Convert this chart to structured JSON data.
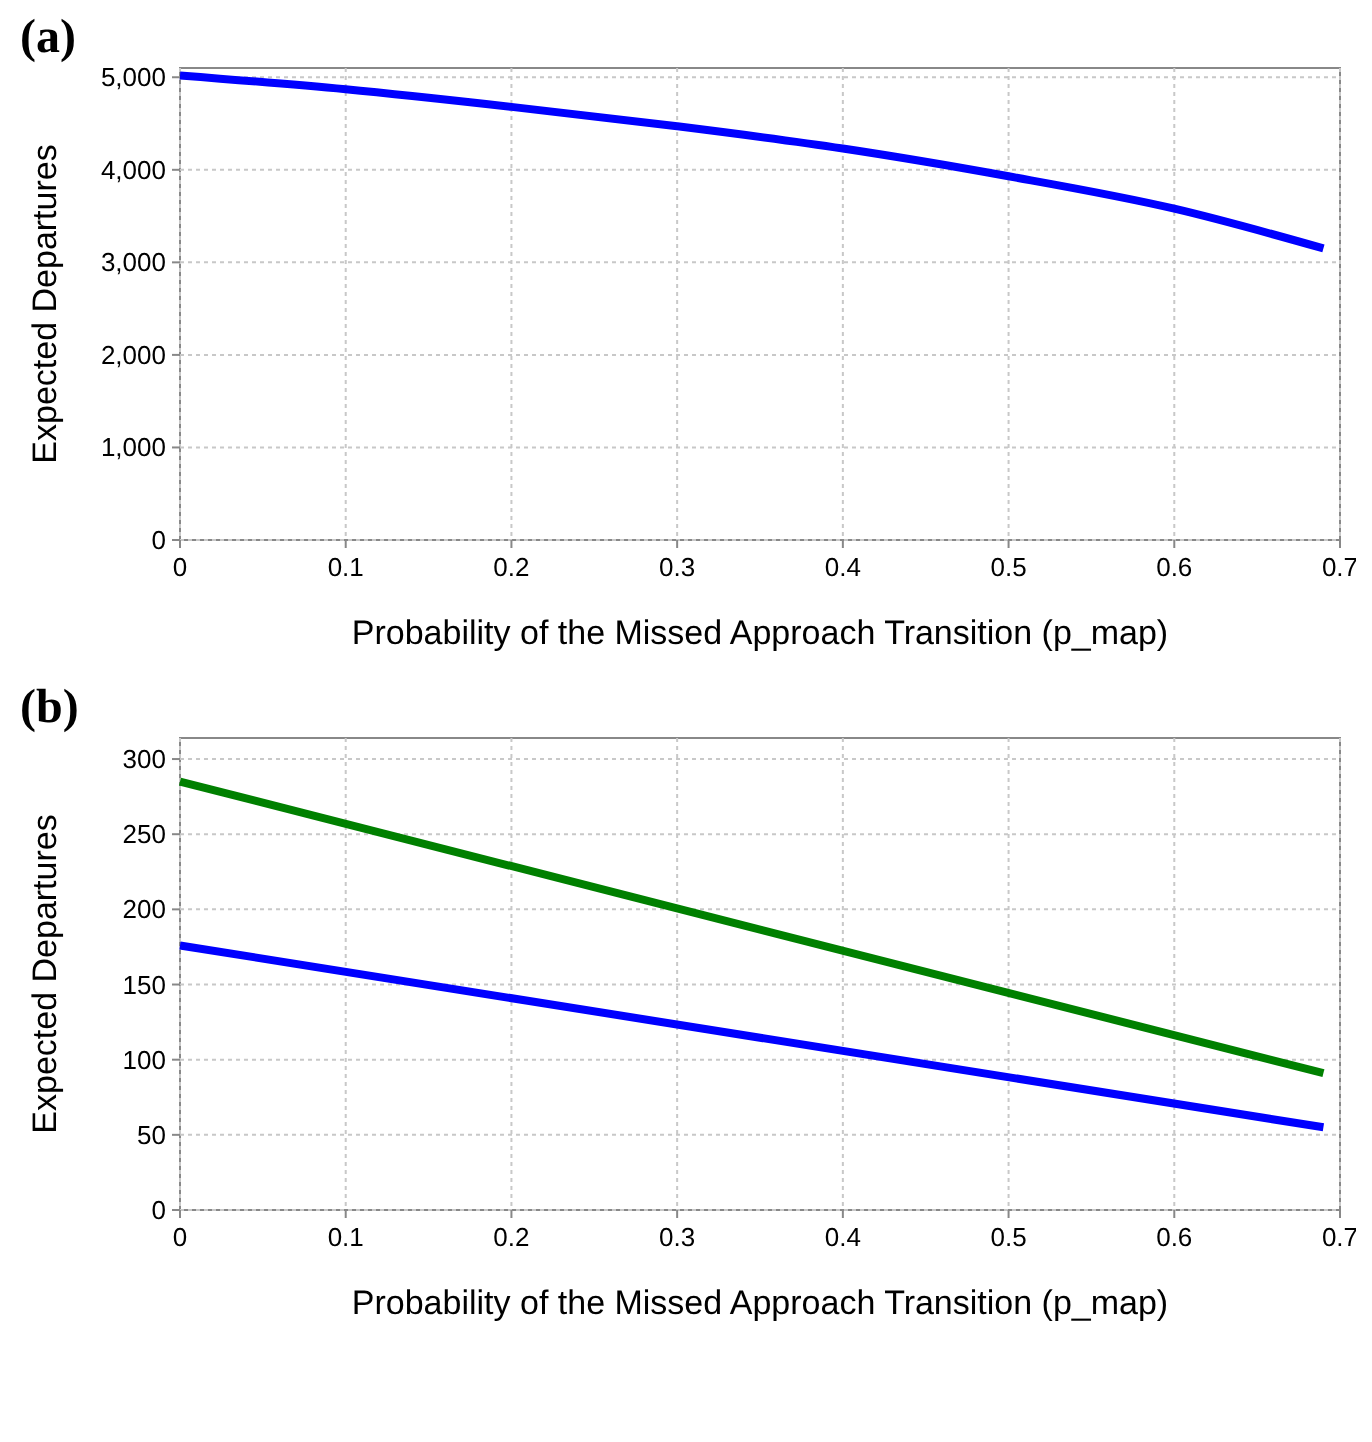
{
  "chart_data": [
    {
      "type": "line",
      "title": "(a)",
      "xlabel": "Probability of the Missed Approach Transition (p_map)",
      "ylabel": "Expected Departures",
      "grid": true,
      "xlim": [
        0,
        0.7
      ],
      "xticks": [
        0,
        0.1,
        0.2,
        0.3,
        0.4,
        0.5,
        0.6,
        0.7
      ],
      "ylim": [
        0,
        5100
      ],
      "yticks": [
        0,
        {
          "value": 1000,
          "label": "1,000"
        },
        {
          "value": 2000,
          "label": "2,000"
        },
        {
          "value": 3000,
          "label": "3,000"
        },
        {
          "value": 4000,
          "label": "4,000"
        },
        {
          "value": 5000,
          "label": "5,000"
        }
      ],
      "series": [
        {
          "color": "#0000ff",
          "x": [
            0,
            0.1,
            0.2,
            0.3,
            0.4,
            0.5,
            0.6,
            0.69
          ],
          "values": [
            5020,
            4870,
            4680,
            4470,
            4230,
            3930,
            3580,
            3150
          ]
        }
      ]
    },
    {
      "type": "line",
      "title": "(b)",
      "xlabel": "Probability of the Missed Approach Transition (p_map)",
      "ylabel": "Expected Departures",
      "grid": true,
      "xlim": [
        0,
        0.7
      ],
      "xticks": [
        0,
        0.1,
        0.2,
        0.3,
        0.4,
        0.5,
        0.6,
        0.7
      ],
      "ylim": [
        0,
        314
      ],
      "yticks": [
        0,
        50,
        100,
        150,
        200,
        250,
        300
      ],
      "series": [
        {
          "color": "#0000ff",
          "x": [
            0,
            0.69
          ],
          "values": [
            176,
            55
          ]
        },
        {
          "color": "#008000",
          "x": [
            0,
            0.69
          ],
          "values": [
            285,
            91
          ]
        }
      ]
    }
  ]
}
